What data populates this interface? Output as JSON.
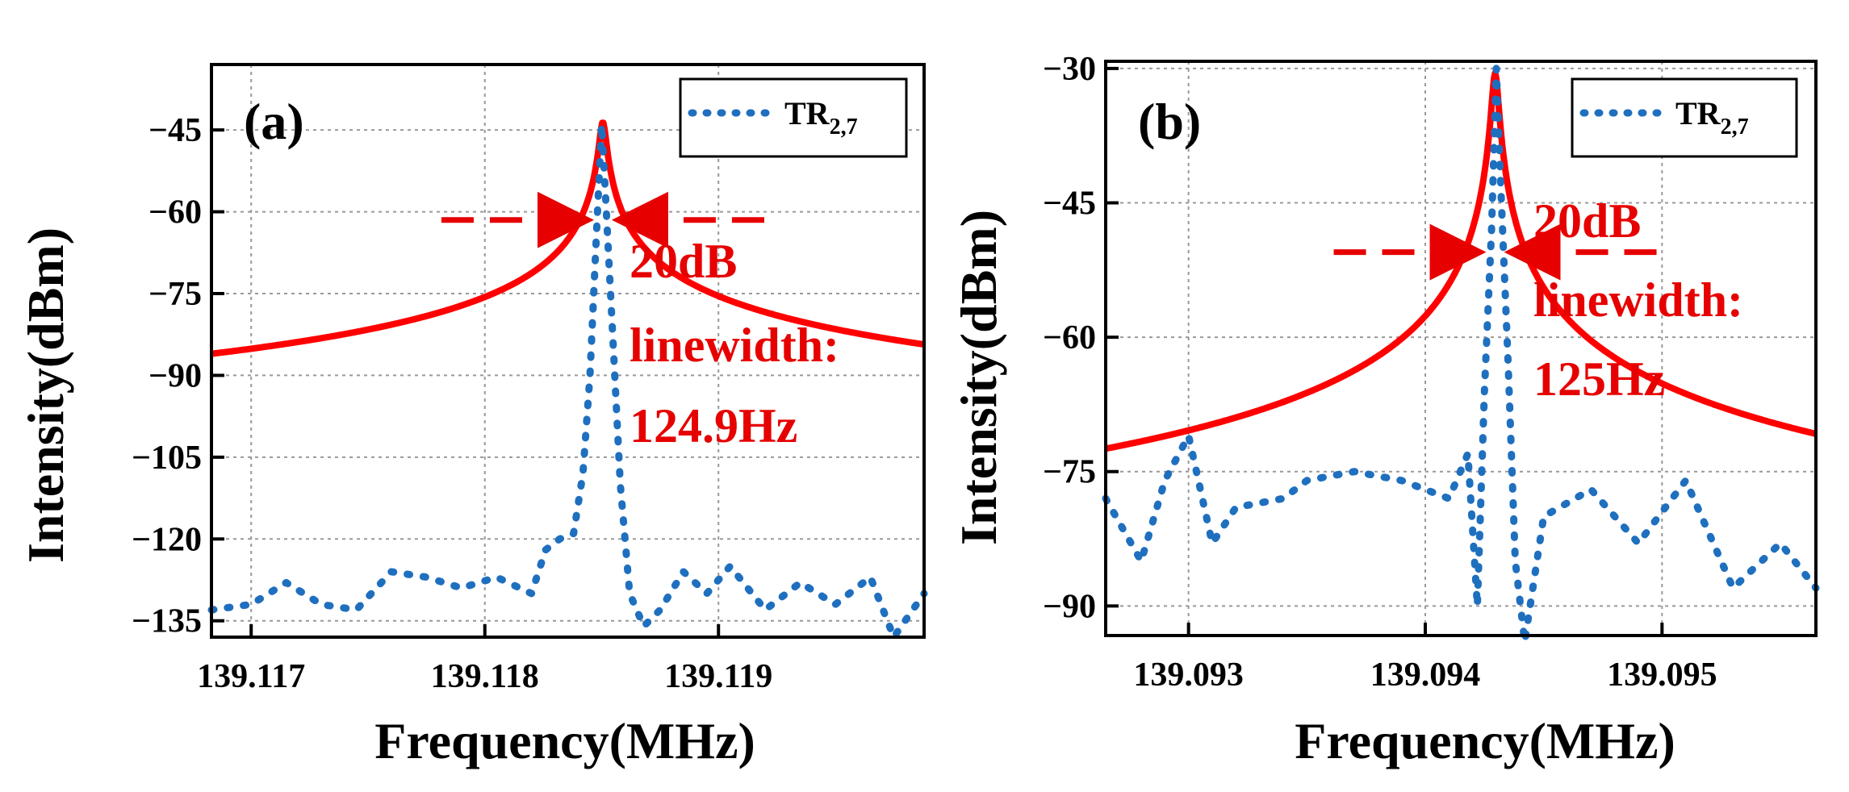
{
  "chart_data": [
    {
      "type": "line",
      "panel_label": "(a)",
      "xlabel": "Frequency(MHz)",
      "ylabel": "Intensity(dBm)",
      "xlim": [
        139.11683,
        139.11988
      ],
      "ylim": [
        -138,
        -33
      ],
      "x_ticks": [
        139.117,
        139.118,
        139.119
      ],
      "x_tick_labels": [
        "139.117",
        "139.118",
        "139.119"
      ],
      "y_ticks": [
        -45,
        -60,
        -75,
        -90,
        -105,
        -120,
        -135
      ],
      "y_tick_labels": [
        "−45",
        "−60",
        "−75",
        "−90",
        "−105",
        "−120",
        "−135"
      ],
      "grid": true,
      "legend": {
        "label": "TR",
        "subscript": "2,7",
        "position": "top-right"
      },
      "annotation": {
        "lines": [
          "20dB",
          "linewidth:",
          "124.9Hz"
        ],
        "arrow_level": -61.5
      },
      "series": [
        {
          "name": "TR_2,7",
          "style": "dotted",
          "color": "#1f6fbf",
          "x": [
            139.11683,
            139.117,
            139.11715,
            139.1173,
            139.11745,
            139.1176,
            139.11775,
            139.1179,
            139.11805,
            139.1182,
            139.11826,
            139.11832,
            139.11838,
            139.11842,
            139.11845,
            139.11848,
            139.1185,
            139.11852,
            139.11855,
            139.11858,
            139.11862,
            139.11868,
            139.11875,
            139.11885,
            139.11895,
            139.11905,
            139.1192,
            139.11935,
            139.1195,
            139.11965,
            139.11975,
            139.11988
          ],
          "y": [
            -133,
            -132,
            -128,
            -132,
            -133,
            -126,
            -127,
            -129,
            -127,
            -130,
            -122,
            -120,
            -119,
            -108,
            -90,
            -62,
            -44,
            -60,
            -85,
            -110,
            -130,
            -136,
            -133,
            -126,
            -130,
            -125,
            -133,
            -128,
            -132,
            -127,
            -138,
            -130
          ]
        },
        {
          "name": "Lorentzian fit",
          "style": "solid",
          "color": "#ff0000",
          "fit": {
            "center": 139.118505,
            "half_width": 1.25e-05,
            "floor": -134.5,
            "peak": -43.5
          }
        }
      ]
    },
    {
      "type": "line",
      "panel_label": "(b)",
      "xlabel": "Frequency(MHz)",
      "ylabel": "Intensity(dBm)",
      "xlim": [
        139.09265,
        139.09565
      ],
      "ylim": [
        -93.3,
        -29.2
      ],
      "x_ticks": [
        139.093,
        139.094,
        139.095
      ],
      "x_tick_labels": [
        "139.093",
        "139.094",
        "139.095"
      ],
      "y_ticks": [
        -30,
        -45,
        -60,
        -75,
        -90
      ],
      "y_tick_labels": [
        "−30",
        "−45",
        "−60",
        "−75",
        "−90"
      ],
      "grid": true,
      "legend": {
        "label": "TR",
        "subscript": "2,7",
        "position": "top-right"
      },
      "annotation": {
        "lines": [
          "20dB",
          "linewidth:",
          "125Hz"
        ],
        "arrow_level": -50.5
      },
      "series": [
        {
          "name": "TR_2,7",
          "style": "dotted",
          "color": "#1f6fbf",
          "x": [
            139.09265,
            139.0928,
            139.0929,
            139.093,
            139.0931,
            139.0932,
            139.0934,
            139.0935,
            139.0937,
            139.0939,
            139.0941,
            139.09418,
            139.09422,
            139.09425,
            139.09428,
            139.0943,
            139.09432,
            139.09435,
            139.09438,
            139.09442,
            139.0945,
            139.0947,
            139.0949,
            139.0951,
            139.0953,
            139.0955,
            139.09565
          ],
          "y": [
            -78,
            -85,
            -76,
            -71,
            -83,
            -79,
            -78,
            -76,
            -75,
            -76,
            -78,
            -73,
            -90,
            -66,
            -48,
            -30,
            -44,
            -63,
            -85,
            -94,
            -80,
            -77,
            -83,
            -76,
            -88,
            -83,
            -88
          ]
        },
        {
          "name": "Lorentzian fit",
          "style": "solid",
          "color": "#ff0000",
          "fit": {
            "center": 139.094295,
            "half_width": 1.3e-05,
            "floor": -88.7,
            "peak": -30.5
          }
        }
      ]
    }
  ]
}
